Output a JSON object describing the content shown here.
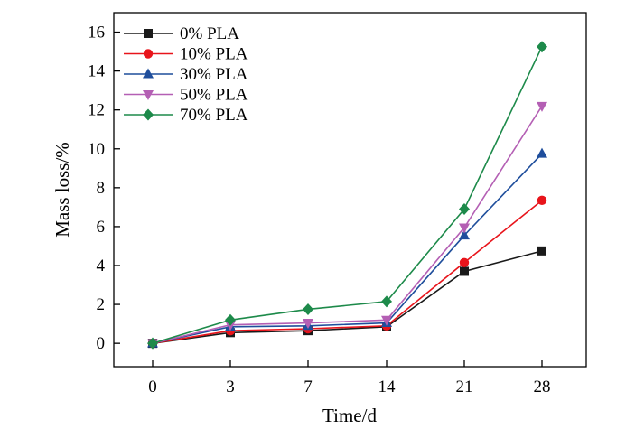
{
  "chart_data": {
    "type": "line",
    "title": "",
    "xlabel": "Time/d",
    "ylabel": "Mass loss/%",
    "categories": [
      "0",
      "3",
      "7",
      "14",
      "21",
      "28"
    ],
    "ylim": [
      -1.2,
      17
    ],
    "yticks": [
      0,
      2,
      4,
      6,
      8,
      10,
      12,
      14,
      16
    ],
    "grid": false,
    "legend_position": "top-left",
    "series": [
      {
        "name": "0% PLA",
        "color": "#1a1a1a",
        "marker": "square",
        "values": [
          0.0,
          0.55,
          0.65,
          0.85,
          3.7,
          4.75
        ]
      },
      {
        "name": "10% PLA",
        "color": "#e8141b",
        "marker": "circle",
        "values": [
          0.0,
          0.65,
          0.75,
          0.9,
          4.15,
          7.35
        ]
      },
      {
        "name": "30% PLA",
        "color": "#1f4e9c",
        "marker": "triangle-up",
        "values": [
          0.0,
          0.85,
          0.9,
          1.05,
          5.55,
          9.75
        ]
      },
      {
        "name": "50% PLA",
        "color": "#b45fb4",
        "marker": "triangle-down",
        "values": [
          0.0,
          0.95,
          1.05,
          1.2,
          5.95,
          12.2
        ]
      },
      {
        "name": "70% PLA",
        "color": "#1d8a4a",
        "marker": "diamond",
        "values": [
          0.0,
          1.2,
          1.75,
          2.15,
          6.9,
          15.25
        ]
      }
    ]
  }
}
